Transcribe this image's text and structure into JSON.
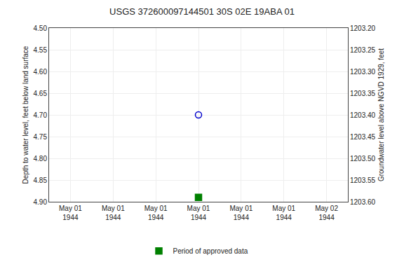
{
  "chart_data": {
    "type": "scatter",
    "title": "USGS 372600097144501 30S 02E 19ABA 01",
    "y_label": "Depth to water level, feet below land surface",
    "y2_label": "Groundwater level above NGVD 1929, feet",
    "categories": [
      "May 01\n1944",
      "May 01\n1944",
      "May 01\n1944",
      "May 01\n1944",
      "May 01\n1944",
      "May 01\n1944",
      "May 02\n1944"
    ],
    "series": [
      {
        "color": "#0000cc",
        "marker": "circle-open",
        "values": [
          null,
          null,
          null,
          4.7,
          null,
          null,
          null
        ]
      },
      {
        "name": "Period of approved data",
        "color": "#008000",
        "marker": "square",
        "values": [
          null,
          null,
          null,
          4.89,
          null,
          null,
          null
        ]
      }
    ],
    "ylim": [
      4.9,
      4.5
    ],
    "yticks": [
      {
        "value": 4.5,
        "label": "4.50"
      },
      4.55,
      {
        "value": 4.6,
        "label": "4.60"
      },
      4.65,
      {
        "value": 4.7,
        "label": "4.70"
      },
      4.75,
      {
        "value": 4.8,
        "label": "4.80"
      },
      4.85,
      {
        "value": 4.9,
        "label": "4.90"
      }
    ],
    "y2lim": [
      1203.6,
      1203.2
    ],
    "y2ticks": [
      {
        "value": 1203.6,
        "label": "1203.60"
      },
      1203.55,
      {
        "value": 1203.5,
        "label": "1203.50"
      },
      1203.45,
      {
        "value": 1203.4,
        "label": "1203.40"
      },
      1203.35,
      {
        "value": 1203.3,
        "label": "1203.30"
      },
      1203.25,
      {
        "value": 1203.2,
        "label": "1203.20"
      }
    ],
    "grid": true,
    "legend": "bottom"
  }
}
